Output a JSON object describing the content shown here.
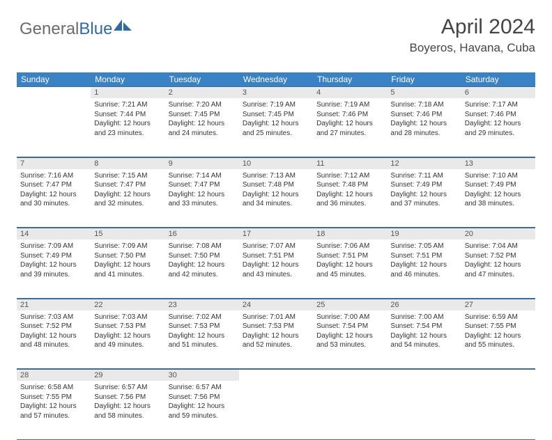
{
  "logo": {
    "text_gray": "General",
    "text_blue": "Blue"
  },
  "header": {
    "month": "April 2024",
    "location": "Boyeros, Havana, Cuba"
  },
  "colors": {
    "header_bg": "#3a82c4",
    "header_text": "#ffffff",
    "daynum_bg": "#e9e9e9",
    "border": "#3a6c9e",
    "logo_gray": "#6b6b6b",
    "logo_blue": "#2f6aa8"
  },
  "weekdays": [
    "Sunday",
    "Monday",
    "Tuesday",
    "Wednesday",
    "Thursday",
    "Friday",
    "Saturday"
  ],
  "weeks": [
    [
      {
        "num": "",
        "lines": []
      },
      {
        "num": "1",
        "lines": [
          "Sunrise: 7:21 AM",
          "Sunset: 7:44 PM",
          "Daylight: 12 hours",
          "and 23 minutes."
        ]
      },
      {
        "num": "2",
        "lines": [
          "Sunrise: 7:20 AM",
          "Sunset: 7:45 PM",
          "Daylight: 12 hours",
          "and 24 minutes."
        ]
      },
      {
        "num": "3",
        "lines": [
          "Sunrise: 7:19 AM",
          "Sunset: 7:45 PM",
          "Daylight: 12 hours",
          "and 25 minutes."
        ]
      },
      {
        "num": "4",
        "lines": [
          "Sunrise: 7:19 AM",
          "Sunset: 7:46 PM",
          "Daylight: 12 hours",
          "and 27 minutes."
        ]
      },
      {
        "num": "5",
        "lines": [
          "Sunrise: 7:18 AM",
          "Sunset: 7:46 PM",
          "Daylight: 12 hours",
          "and 28 minutes."
        ]
      },
      {
        "num": "6",
        "lines": [
          "Sunrise: 7:17 AM",
          "Sunset: 7:46 PM",
          "Daylight: 12 hours",
          "and 29 minutes."
        ]
      }
    ],
    [
      {
        "num": "7",
        "lines": [
          "Sunrise: 7:16 AM",
          "Sunset: 7:47 PM",
          "Daylight: 12 hours",
          "and 30 minutes."
        ]
      },
      {
        "num": "8",
        "lines": [
          "Sunrise: 7:15 AM",
          "Sunset: 7:47 PM",
          "Daylight: 12 hours",
          "and 32 minutes."
        ]
      },
      {
        "num": "9",
        "lines": [
          "Sunrise: 7:14 AM",
          "Sunset: 7:47 PM",
          "Daylight: 12 hours",
          "and 33 minutes."
        ]
      },
      {
        "num": "10",
        "lines": [
          "Sunrise: 7:13 AM",
          "Sunset: 7:48 PM",
          "Daylight: 12 hours",
          "and 34 minutes."
        ]
      },
      {
        "num": "11",
        "lines": [
          "Sunrise: 7:12 AM",
          "Sunset: 7:48 PM",
          "Daylight: 12 hours",
          "and 36 minutes."
        ]
      },
      {
        "num": "12",
        "lines": [
          "Sunrise: 7:11 AM",
          "Sunset: 7:49 PM",
          "Daylight: 12 hours",
          "and 37 minutes."
        ]
      },
      {
        "num": "13",
        "lines": [
          "Sunrise: 7:10 AM",
          "Sunset: 7:49 PM",
          "Daylight: 12 hours",
          "and 38 minutes."
        ]
      }
    ],
    [
      {
        "num": "14",
        "lines": [
          "Sunrise: 7:09 AM",
          "Sunset: 7:49 PM",
          "Daylight: 12 hours",
          "and 39 minutes."
        ]
      },
      {
        "num": "15",
        "lines": [
          "Sunrise: 7:09 AM",
          "Sunset: 7:50 PM",
          "Daylight: 12 hours",
          "and 41 minutes."
        ]
      },
      {
        "num": "16",
        "lines": [
          "Sunrise: 7:08 AM",
          "Sunset: 7:50 PM",
          "Daylight: 12 hours",
          "and 42 minutes."
        ]
      },
      {
        "num": "17",
        "lines": [
          "Sunrise: 7:07 AM",
          "Sunset: 7:51 PM",
          "Daylight: 12 hours",
          "and 43 minutes."
        ]
      },
      {
        "num": "18",
        "lines": [
          "Sunrise: 7:06 AM",
          "Sunset: 7:51 PM",
          "Daylight: 12 hours",
          "and 45 minutes."
        ]
      },
      {
        "num": "19",
        "lines": [
          "Sunrise: 7:05 AM",
          "Sunset: 7:51 PM",
          "Daylight: 12 hours",
          "and 46 minutes."
        ]
      },
      {
        "num": "20",
        "lines": [
          "Sunrise: 7:04 AM",
          "Sunset: 7:52 PM",
          "Daylight: 12 hours",
          "and 47 minutes."
        ]
      }
    ],
    [
      {
        "num": "21",
        "lines": [
          "Sunrise: 7:03 AM",
          "Sunset: 7:52 PM",
          "Daylight: 12 hours",
          "and 48 minutes."
        ]
      },
      {
        "num": "22",
        "lines": [
          "Sunrise: 7:03 AM",
          "Sunset: 7:53 PM",
          "Daylight: 12 hours",
          "and 49 minutes."
        ]
      },
      {
        "num": "23",
        "lines": [
          "Sunrise: 7:02 AM",
          "Sunset: 7:53 PM",
          "Daylight: 12 hours",
          "and 51 minutes."
        ]
      },
      {
        "num": "24",
        "lines": [
          "Sunrise: 7:01 AM",
          "Sunset: 7:53 PM",
          "Daylight: 12 hours",
          "and 52 minutes."
        ]
      },
      {
        "num": "25",
        "lines": [
          "Sunrise: 7:00 AM",
          "Sunset: 7:54 PM",
          "Daylight: 12 hours",
          "and 53 minutes."
        ]
      },
      {
        "num": "26",
        "lines": [
          "Sunrise: 7:00 AM",
          "Sunset: 7:54 PM",
          "Daylight: 12 hours",
          "and 54 minutes."
        ]
      },
      {
        "num": "27",
        "lines": [
          "Sunrise: 6:59 AM",
          "Sunset: 7:55 PM",
          "Daylight: 12 hours",
          "and 55 minutes."
        ]
      }
    ],
    [
      {
        "num": "28",
        "lines": [
          "Sunrise: 6:58 AM",
          "Sunset: 7:55 PM",
          "Daylight: 12 hours",
          "and 57 minutes."
        ]
      },
      {
        "num": "29",
        "lines": [
          "Sunrise: 6:57 AM",
          "Sunset: 7:56 PM",
          "Daylight: 12 hours",
          "and 58 minutes."
        ]
      },
      {
        "num": "30",
        "lines": [
          "Sunrise: 6:57 AM",
          "Sunset: 7:56 PM",
          "Daylight: 12 hours",
          "and 59 minutes."
        ]
      },
      {
        "num": "",
        "lines": []
      },
      {
        "num": "",
        "lines": []
      },
      {
        "num": "",
        "lines": []
      },
      {
        "num": "",
        "lines": []
      }
    ]
  ]
}
